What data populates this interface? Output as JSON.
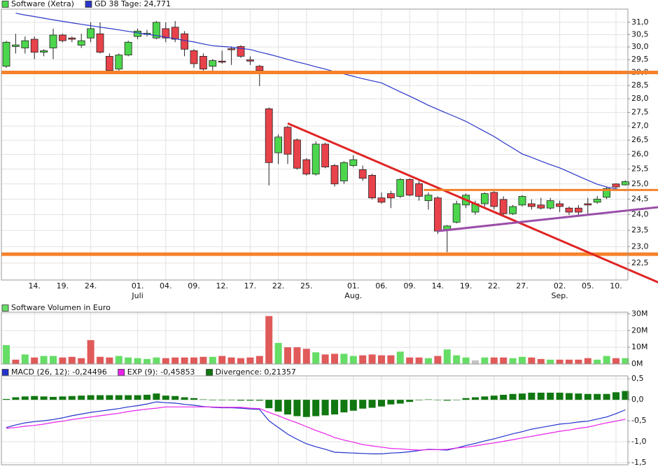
{
  "chart_data": [
    {
      "type": "candlestick",
      "categories": [
        null,
        null,
        null,
        "14.",
        null,
        null,
        "19.",
        null,
        null,
        "24.",
        null,
        null,
        null,
        null,
        "01.",
        null,
        null,
        "04.",
        null,
        null,
        "09.",
        null,
        null,
        "12.",
        null,
        null,
        "17.",
        null,
        null,
        "22.",
        null,
        null,
        "25.",
        null,
        null,
        null,
        null,
        "01.",
        null,
        null,
        "06.",
        null,
        null,
        "09.",
        null,
        null,
        "14.",
        null,
        null,
        "19.",
        null,
        null,
        "22.",
        null,
        null,
        "27.",
        null,
        null,
        null,
        "02.",
        null,
        null,
        "05.",
        null,
        null,
        "10.",
        null
      ],
      "month_labels": [
        null,
        null,
        null,
        null,
        null,
        null,
        null,
        null,
        null,
        null,
        null,
        null,
        null,
        null,
        "Juli",
        null,
        null,
        null,
        null,
        null,
        null,
        null,
        null,
        null,
        null,
        null,
        null,
        null,
        null,
        null,
        null,
        null,
        null,
        null,
        null,
        null,
        null,
        "Aug.",
        null,
        null,
        null,
        null,
        null,
        null,
        null,
        null,
        null,
        null,
        null,
        null,
        null,
        null,
        null,
        null,
        null,
        null,
        null,
        null,
        null,
        "Sep.",
        null,
        null,
        null,
        null,
        null,
        null,
        null
      ],
      "series": [
        {
          "name": "Software (Xetra)",
          "color": "#4cd64c",
          "color_up": "#4cd64c",
          "color_down": "#e8424a",
          "open": [
            29.24,
            30.02,
            29.96,
            30.31,
            29.79,
            29.96,
            30.48,
            30.36,
            30.07,
            30.36,
            30.53,
            29.63,
            29.13,
            29.68,
            30.42,
            30.51,
            30.36,
            30.74,
            30.8,
            30.53,
            29.85,
            29.63,
            29.24,
            29.44,
            29.93,
            30.02,
            29.49,
            29.24,
            27.63,
            26.06,
            26.96,
            26.51,
            25.82,
            25.33,
            26.36,
            25.62,
            25.1,
            25.62,
            25.48,
            25.29,
            24.54,
            24.68,
            24.59,
            25.15,
            25.01,
            24.45,
            24.54,
            23.53,
            23.76,
            24.31,
            24.08,
            24.35,
            24.72,
            24.49,
            24.03,
            24.31,
            24.35,
            24.31,
            24.21,
            24.35,
            24.21,
            24.21,
            24.35,
            24.4,
            24.56,
            25.0,
            24.97
          ],
          "high": [
            30.24,
            30.53,
            30.42,
            30.42,
            29.91,
            30.74,
            30.53,
            30.42,
            30.53,
            31.0,
            31.0,
            29.74,
            29.74,
            30.25,
            30.74,
            30.69,
            31.05,
            31.0,
            31.05,
            30.64,
            29.91,
            29.74,
            29.52,
            29.85,
            30.02,
            30.07,
            29.63,
            29.29,
            27.68,
            26.71,
            27.01,
            26.56,
            25.87,
            26.46,
            26.41,
            25.67,
            25.77,
            25.97,
            25.62,
            25.34,
            24.72,
            24.77,
            25.19,
            25.19,
            25.1,
            24.72,
            24.59,
            23.67,
            24.45,
            24.68,
            24.45,
            24.72,
            24.76,
            24.59,
            24.31,
            24.63,
            24.49,
            24.54,
            24.54,
            24.45,
            24.26,
            24.31,
            24.54,
            24.6,
            24.9,
            25.02,
            25.12
          ],
          "low": [
            29.18,
            29.74,
            29.74,
            29.52,
            29.63,
            29.52,
            30.19,
            30.19,
            29.96,
            30.19,
            29.74,
            28.97,
            28.97,
            29.63,
            30.31,
            30.42,
            30.31,
            30.19,
            30.19,
            29.63,
            29.18,
            29.07,
            29.07,
            29.34,
            29.29,
            29.57,
            29.29,
            28.48,
            24.95,
            25.67,
            25.67,
            25.48,
            25.28,
            25.28,
            25.53,
            24.91,
            25.0,
            25.57,
            25.1,
            24.49,
            24.35,
            24.21,
            24.54,
            24.59,
            24.45,
            24.16,
            23.39,
            22.83,
            23.72,
            24.21,
            23.99,
            24.26,
            24.16,
            23.99,
            23.99,
            24.26,
            24.16,
            24.16,
            24.16,
            24.08,
            23.99,
            23.94,
            23.99,
            24.35,
            24.5,
            24.85,
            24.95
          ],
          "close": [
            30.19,
            30.08,
            30.25,
            29.79,
            29.85,
            30.48,
            30.25,
            30.31,
            30.25,
            30.74,
            29.79,
            29.07,
            29.68,
            30.19,
            30.64,
            30.55,
            31.0,
            30.36,
            30.31,
            29.91,
            29.34,
            29.13,
            29.46,
            29.4,
            29.9,
            29.63,
            29.44,
            29.07,
            25.72,
            26.61,
            26.01,
            25.53,
            25.33,
            26.36,
            25.57,
            25.0,
            25.72,
            25.82,
            25.19,
            24.54,
            24.4,
            24.54,
            25.15,
            24.63,
            24.59,
            24.63,
            23.48,
            23.64,
            24.35,
            24.63,
            24.35,
            24.68,
            24.26,
            24.03,
            24.26,
            24.59,
            24.26,
            24.21,
            24.45,
            24.26,
            24.08,
            24.08,
            24.31,
            24.5,
            24.85,
            24.9,
            25.08
          ]
        },
        {
          "name": "GD 38 Tage: 24,771",
          "color": "#2a36c8",
          "values": [
            null,
            31.38,
            31.3,
            31.24,
            31.17,
            31.1,
            31.04,
            30.98,
            30.92,
            30.86,
            30.8,
            30.75,
            30.69,
            30.63,
            30.57,
            30.51,
            30.46,
            30.39,
            30.33,
            30.26,
            30.2,
            30.12,
            30.05,
            30.02,
            29.99,
            29.94,
            29.9,
            29.8,
            29.71,
            29.61,
            29.51,
            29.41,
            29.32,
            29.22,
            29.13,
            29.03,
            28.94,
            28.85,
            28.76,
            28.68,
            28.6,
            28.43,
            28.26,
            28.1,
            27.93,
            27.76,
            27.61,
            27.46,
            27.32,
            27.17,
            26.99,
            26.81,
            26.63,
            26.42,
            26.22,
            26.02,
            25.9,
            25.77,
            25.65,
            25.54,
            25.4,
            25.26,
            25.12,
            24.99,
            24.9,
            24.84,
            24.77
          ]
        }
      ],
      "log_scale": true,
      "ylim": [
        22.0,
        31.55
      ],
      "yticks": [
        {
          "value": 22.5,
          "label": "22,5"
        },
        {
          "value": 23.0,
          "label": "23,0"
        },
        {
          "value": 23.5,
          "label": "23,5"
        },
        {
          "value": 24.0,
          "label": "24,0"
        },
        {
          "value": 24.5,
          "label": "24,5"
        },
        {
          "value": 25.0,
          "label": "25,0"
        },
        {
          "value": 25.5,
          "label": "25,5"
        },
        {
          "value": 26.0,
          "label": "26,0"
        },
        {
          "value": 26.5,
          "label": "26,5"
        },
        {
          "value": 27.0,
          "label": "27,0"
        },
        {
          "value": 27.5,
          "label": "27,5"
        },
        {
          "value": 28.0,
          "label": "28,0"
        },
        {
          "value": 28.5,
          "label": "28,5"
        },
        {
          "value": 29.0,
          "label": "29,0"
        },
        {
          "value": 29.5,
          "label": "29,5"
        },
        {
          "value": 30.0,
          "label": "30,0"
        },
        {
          "value": 30.5,
          "label": "30,5"
        },
        {
          "value": 31.0,
          "label": "31,0"
        }
      ],
      "grid": true,
      "hlines": [
        {
          "value": 29.0,
          "color": "#f5822a"
        },
        {
          "value": 22.77,
          "color": "#f5822a"
        }
      ],
      "trendlines": [
        {
          "color": "#e02424",
          "points": [
            [
              30,
              27.1
            ],
            [
              69.5,
              21.93
            ]
          ]
        },
        {
          "color": "#9a4ea8",
          "points": [
            [
              46,
              23.48
            ],
            [
              69.5,
              24.24
            ]
          ]
        },
        {
          "color": "#f5822a",
          "points": [
            [
              44.5,
              24.8
            ],
            [
              69.5,
              24.8
            ]
          ]
        }
      ]
    },
    {
      "type": "bar",
      "title": "Software Volumen in Euro",
      "color": "#66dd66",
      "values": [
        11.3,
        2.6,
        5.7,
        3.9,
        4.8,
        4.8,
        3.9,
        4.3,
        3.5,
        14.3,
        4.3,
        3.9,
        4.8,
        3.9,
        3.5,
        3.0,
        3.9,
        3.5,
        3.9,
        3.9,
        3.9,
        4.3,
        4.3,
        4.8,
        3.9,
        3.5,
        3.9,
        4.8,
        28.7,
        12.6,
        10.0,
        10.0,
        9.1,
        7.0,
        5.7,
        6.1,
        6.1,
        4.8,
        5.2,
        5.7,
        5.2,
        5.2,
        7.4,
        3.9,
        3.9,
        3.5,
        4.8,
        8.7,
        5.2,
        3.9,
        2.2,
        3.9,
        3.9,
        3.9,
        3.5,
        4.3,
        3.9,
        3.0,
        2.6,
        2.6,
        2.6,
        2.6,
        3.5,
        2.6,
        4.8,
        3.5,
        3.5
      ],
      "colors": [
        "#66dd66",
        "#e05a5a",
        "#66dd66",
        "#e05a5a",
        "#66dd66",
        "#66dd66",
        "#e05a5a",
        "#e05a5a",
        "#e05a5a",
        "#e05a5a",
        "#e05a5a",
        "#e05a5a",
        "#66dd66",
        "#66dd66",
        "#66dd66",
        "#66dd66",
        "#66dd66",
        "#e05a5a",
        "#e05a5a",
        "#e05a5a",
        "#e05a5a",
        "#e05a5a",
        "#66dd66",
        "#e05a5a",
        "#e05a5a",
        "#e05a5a",
        "#e05a5a",
        "#e05a5a",
        "#e05a5a",
        "#66dd66",
        "#e05a5a",
        "#e05a5a",
        "#e05a5a",
        "#66dd66",
        "#e05a5a",
        "#e05a5a",
        "#66dd66",
        "#66dd66",
        "#e05a5a",
        "#e05a5a",
        "#e05a5a",
        "#e05a5a",
        "#66dd66",
        "#e05a5a",
        "#e05a5a",
        "#66dd66",
        "#e05a5a",
        "#66dd66",
        "#66dd66",
        "#66dd66",
        "#c4c4c4",
        "#66dd66",
        "#e05a5a",
        "#e05a5a",
        "#66dd66",
        "#66dd66",
        "#e05a5a",
        "#e05a5a",
        "#66dd66",
        "#e05a5a",
        "#e05a5a",
        "#e05a5a",
        "#e05a5a",
        "#66dd66",
        "#66dd66",
        "#e05a5a",
        "#66dd66"
      ],
      "ylim": [
        0,
        31
      ],
      "yticks": [
        {
          "value": 0,
          "label": "0M"
        },
        {
          "value": 10,
          "label": "10M"
        },
        {
          "value": 20,
          "label": "20M"
        },
        {
          "value": 30,
          "label": "30M"
        }
      ],
      "grid": true
    },
    {
      "type": "macd",
      "series": [
        {
          "name": "MACD (26, 12): -0,24496",
          "color": "#2233cc",
          "kind": "line",
          "values": [
            -0.66,
            -0.6,
            -0.55,
            -0.52,
            -0.5,
            -0.47,
            -0.43,
            -0.38,
            -0.34,
            -0.3,
            -0.27,
            -0.24,
            -0.21,
            -0.17,
            -0.14,
            -0.1,
            -0.05,
            -0.07,
            -0.08,
            -0.11,
            -0.13,
            -0.16,
            -0.18,
            -0.19,
            -0.19,
            -0.2,
            -0.22,
            -0.23,
            -0.5,
            -0.66,
            -0.82,
            -0.94,
            -1.05,
            -1.12,
            -1.18,
            -1.25,
            -1.26,
            -1.27,
            -1.28,
            -1.29,
            -1.29,
            -1.27,
            -1.26,
            -1.24,
            -1.21,
            -1.18,
            -1.19,
            -1.2,
            -1.15,
            -1.09,
            -1.04,
            -0.98,
            -0.93,
            -0.87,
            -0.81,
            -0.76,
            -0.7,
            -0.66,
            -0.62,
            -0.58,
            -0.56,
            -0.53,
            -0.51,
            -0.46,
            -0.41,
            -0.33,
            -0.24
          ]
        },
        {
          "name": "EXP (9): -0,45853",
          "color": "#e822e8",
          "kind": "line",
          "values": [
            -0.68,
            -0.66,
            -0.63,
            -0.61,
            -0.58,
            -0.54,
            -0.51,
            -0.47,
            -0.44,
            -0.41,
            -0.38,
            -0.35,
            -0.32,
            -0.28,
            -0.25,
            -0.22,
            -0.2,
            -0.17,
            -0.17,
            -0.17,
            -0.17,
            -0.17,
            -0.17,
            -0.18,
            -0.18,
            -0.18,
            -0.2,
            -0.21,
            -0.3,
            -0.38,
            -0.47,
            -0.55,
            -0.64,
            -0.73,
            -0.81,
            -0.9,
            -0.96,
            -1.01,
            -1.07,
            -1.1,
            -1.13,
            -1.16,
            -1.17,
            -1.19,
            -1.2,
            -1.19,
            -1.19,
            -1.18,
            -1.15,
            -1.13,
            -1.1,
            -1.06,
            -1.03,
            -0.99,
            -0.95,
            -0.91,
            -0.87,
            -0.83,
            -0.79,
            -0.75,
            -0.72,
            -0.68,
            -0.65,
            -0.6,
            -0.55,
            -0.51,
            -0.46
          ]
        },
        {
          "name": "Divergence: 0,21357",
          "color": "#117711",
          "kind": "bar",
          "values": [
            0.02,
            0.06,
            0.08,
            0.09,
            0.08,
            0.07,
            0.08,
            0.09,
            0.1,
            0.11,
            0.11,
            0.11,
            0.11,
            0.11,
            0.11,
            0.12,
            0.15,
            0.1,
            0.09,
            0.06,
            0.04,
            0.01,
            -0.01,
            -0.01,
            -0.01,
            -0.02,
            -0.02,
            -0.02,
            -0.2,
            -0.28,
            -0.35,
            -0.39,
            -0.41,
            -0.39,
            -0.37,
            -0.35,
            -0.3,
            -0.26,
            -0.21,
            -0.19,
            -0.16,
            -0.11,
            -0.09,
            -0.05,
            -0.01,
            0.01,
            0.0,
            -0.02,
            0.0,
            0.04,
            0.06,
            0.08,
            0.1,
            0.12,
            0.14,
            0.15,
            0.17,
            0.17,
            0.17,
            0.17,
            0.16,
            0.15,
            0.14,
            0.14,
            0.14,
            0.18,
            0.21
          ]
        }
      ],
      "ylim": [
        -1.55,
        0.57
      ],
      "yticks": [
        {
          "value": -1.5,
          "label": "-1,5"
        },
        {
          "value": -1.0,
          "label": "-1,0"
        },
        {
          "value": -0.5,
          "label": "-0,5"
        },
        {
          "value": 0,
          "label": "0,0"
        },
        {
          "value": 0.5,
          "label": "0,5"
        }
      ],
      "grid": true
    }
  ]
}
